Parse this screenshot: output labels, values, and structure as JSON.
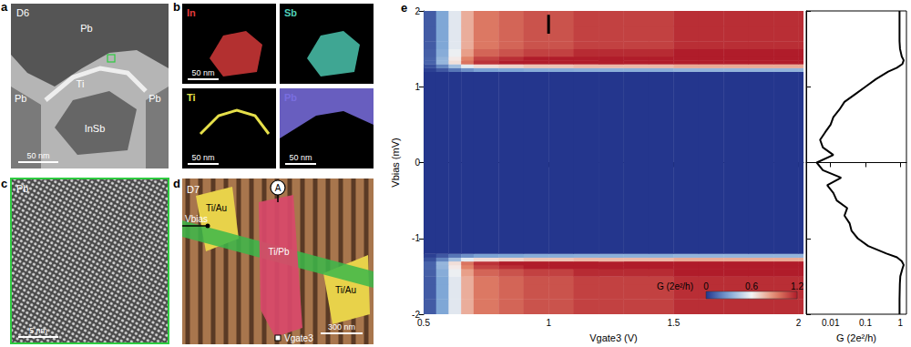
{
  "figure": {
    "panels": [
      {
        "label": "a",
        "device": "D6",
        "regions": [
          "Pb",
          "Ti",
          "Pb",
          "Pb",
          "InSb"
        ],
        "scale_bar": "50 nm"
      },
      {
        "label": "b",
        "maps": [
          {
            "element": "In",
            "color": "#e03c3c",
            "scale_bar": "50 nm"
          },
          {
            "element": "Sb",
            "color": "#4fd0b8"
          },
          {
            "element": "Ti",
            "color": "#e6e04a",
            "scale_bar": "50 nm"
          },
          {
            "element": "Pb",
            "color": "#7a6ee0",
            "scale_bar": "50 nm"
          }
        ]
      },
      {
        "label": "c",
        "material": "Pb",
        "scale_bar": "5 nm"
      },
      {
        "label": "d",
        "device": "D7",
        "contacts": [
          "Ti/Au",
          "Ti/Pb",
          "Ti/Au"
        ],
        "terminals": [
          "Vbias",
          "Vgate3"
        ],
        "meter": "A",
        "scale_bar": "300 nm"
      },
      {
        "label": "e"
      }
    ]
  },
  "chart_data": [
    {
      "type": "heatmap",
      "xlabel": "Vgate3 (V)",
      "ylabel": "Vbias (mV)",
      "xlim": [
        0.5,
        2.02
      ],
      "xticks": [
        0.5,
        1,
        1.5,
        2
      ],
      "ylim": [
        -2,
        2
      ],
      "yticks": [
        -2,
        -1,
        0,
        1,
        2
      ],
      "x_edges": [
        0.5,
        0.55,
        0.6,
        0.65,
        0.7,
        0.8,
        0.9,
        1.0,
        1.1,
        1.2,
        1.3,
        1.4,
        1.5,
        1.6,
        1.7,
        1.8,
        1.9,
        2.0,
        2.02
      ],
      "y_edges": [
        -2,
        -1.8,
        -1.6,
        -1.5,
        -1.4,
        -1.35,
        -1.3,
        -1.25,
        -1.2,
        1.2,
        1.25,
        1.3,
        1.35,
        1.4,
        1.5,
        1.6,
        1.8,
        2
      ],
      "cells": [
        [
          0.1,
          0.3,
          0.55,
          0.8,
          0.95,
          1.0,
          1.05,
          1.05,
          1.1,
          1.1,
          1.1,
          1.1,
          1.15,
          1.15,
          1.15,
          1.15,
          1.15,
          1.15
        ],
        [
          0.1,
          0.3,
          0.55,
          0.8,
          0.95,
          1.0,
          1.05,
          1.05,
          1.1,
          1.1,
          1.1,
          1.1,
          1.15,
          1.15,
          1.15,
          1.15,
          1.15,
          1.15
        ],
        [
          0.1,
          0.3,
          0.55,
          0.8,
          0.95,
          1.0,
          1.05,
          1.05,
          1.1,
          1.1,
          1.1,
          1.1,
          1.15,
          1.15,
          1.15,
          1.15,
          1.15,
          1.15
        ],
        [
          0.11,
          0.32,
          0.58,
          0.84,
          1.0,
          1.05,
          1.1,
          1.1,
          1.16,
          1.16,
          1.16,
          1.16,
          1.21,
          1.21,
          1.21,
          1.21,
          1.21,
          1.21
        ],
        [
          0.12,
          0.35,
          0.63,
          0.92,
          1.09,
          1.15,
          1.21,
          1.21,
          1.27,
          1.27,
          1.27,
          1.27,
          1.32,
          1.32,
          1.32,
          1.32,
          1.32,
          1.32
        ],
        [
          0.12,
          0.36,
          0.66,
          0.96,
          1.14,
          1.2,
          1.26,
          1.26,
          1.32,
          1.32,
          1.32,
          1.32,
          1.38,
          1.38,
          1.38,
          1.38,
          1.38,
          1.38
        ],
        [
          0.07,
          0.21,
          0.39,
          0.56,
          0.67,
          0.7,
          0.74,
          0.74,
          0.77,
          0.77,
          0.77,
          0.77,
          0.81,
          0.81,
          0.81,
          0.81,
          0.81,
          0.81
        ],
        [
          0.03,
          0.09,
          0.17,
          0.24,
          0.29,
          0.3,
          0.32,
          0.32,
          0.33,
          0.33,
          0.33,
          0.33,
          0.35,
          0.35,
          0.35,
          0.35,
          0.35,
          0.35
        ],
        [
          0.003,
          0.003,
          0.003,
          0.003,
          0.003,
          0.003,
          0.003,
          0.003,
          0.003,
          0.003,
          0.003,
          0.003,
          0.003,
          0.003,
          0.003,
          0.003,
          0.003,
          0.003
        ],
        [
          0.03,
          0.09,
          0.17,
          0.24,
          0.29,
          0.3,
          0.32,
          0.32,
          0.33,
          0.33,
          0.33,
          0.33,
          0.35,
          0.35,
          0.35,
          0.35,
          0.35,
          0.35
        ],
        [
          0.07,
          0.21,
          0.39,
          0.56,
          0.67,
          0.7,
          0.74,
          0.74,
          0.77,
          0.77,
          0.77,
          0.77,
          0.81,
          0.81,
          0.81,
          0.81,
          0.81,
          0.81
        ],
        [
          0.12,
          0.36,
          0.66,
          0.96,
          1.14,
          1.2,
          1.26,
          1.26,
          1.32,
          1.32,
          1.32,
          1.32,
          1.38,
          1.38,
          1.38,
          1.38,
          1.38,
          1.38
        ],
        [
          0.12,
          0.35,
          0.63,
          0.92,
          1.09,
          1.15,
          1.21,
          1.21,
          1.27,
          1.27,
          1.27,
          1.27,
          1.32,
          1.32,
          1.32,
          1.32,
          1.32,
          1.32
        ],
        [
          0.11,
          0.32,
          0.58,
          0.84,
          1.0,
          1.05,
          1.1,
          1.1,
          1.16,
          1.16,
          1.16,
          1.16,
          1.21,
          1.21,
          1.21,
          1.21,
          1.21,
          1.21
        ],
        [
          0.1,
          0.3,
          0.55,
          0.8,
          0.95,
          1.0,
          1.05,
          1.05,
          1.1,
          1.1,
          1.1,
          1.1,
          1.15,
          1.15,
          1.15,
          1.15,
          1.15,
          1.15
        ],
        [
          0.1,
          0.3,
          0.55,
          0.8,
          0.95,
          1.0,
          1.05,
          1.05,
          1.1,
          1.1,
          1.1,
          1.1,
          1.15,
          1.15,
          1.15,
          1.15,
          1.15,
          1.15
        ],
        [
          0.1,
          0.3,
          0.55,
          0.8,
          0.95,
          1.0,
          1.05,
          1.05,
          1.1,
          1.1,
          1.1,
          1.1,
          1.15,
          1.15,
          1.15,
          1.15,
          1.15,
          1.15
        ]
      ],
      "colorbar": {
        "label": "G (2e²/h)",
        "range": [
          0,
          1.2
        ],
        "ticks": [
          0,
          0.6,
          1.2
        ]
      },
      "marker_line": {
        "x": 1,
        "y": [
          1.7,
          1.95
        ]
      }
    },
    {
      "type": "line",
      "xlabel": "G (2e²/h)",
      "log": "x",
      "xlim": [
        0.002,
        1.5
      ],
      "xticks": [
        0.01,
        0.1,
        1
      ],
      "ylim": [
        -2,
        2
      ],
      "yticks": [
        -2,
        -1,
        0,
        1,
        2
      ],
      "tick_labels": "x",
      "color": "#000000",
      "x": [
        0.95,
        0.95,
        0.97,
        1.0,
        1.15,
        1.25,
        1.1,
        0.8,
        0.4,
        0.12,
        0.06,
        0.04,
        0.035,
        0.025,
        0.03,
        0.015,
        0.012,
        0.008,
        0.02,
        0.006,
        0.004,
        0.012,
        0.006,
        0.005,
        0.007,
        0.01,
        0.012,
        0.018,
        0.025,
        0.05,
        0.1,
        0.2,
        0.45,
        0.8,
        1.15,
        1.25,
        1.1,
        0.98,
        0.95,
        0.95,
        0.95
      ],
      "y": [
        -2,
        -1.8,
        -1.6,
        -1.5,
        -1.4,
        -1.35,
        -1.3,
        -1.25,
        -1.2,
        -1.1,
        -1.0,
        -0.9,
        -0.8,
        -0.7,
        -0.6,
        -0.5,
        -0.4,
        -0.3,
        -0.2,
        -0.1,
        0,
        0.1,
        0.2,
        0.3,
        0.4,
        0.5,
        0.6,
        0.7,
        0.8,
        0.9,
        1.0,
        1.1,
        1.2,
        1.25,
        1.3,
        1.35,
        1.4,
        1.5,
        1.6,
        1.8,
        2
      ]
    }
  ]
}
